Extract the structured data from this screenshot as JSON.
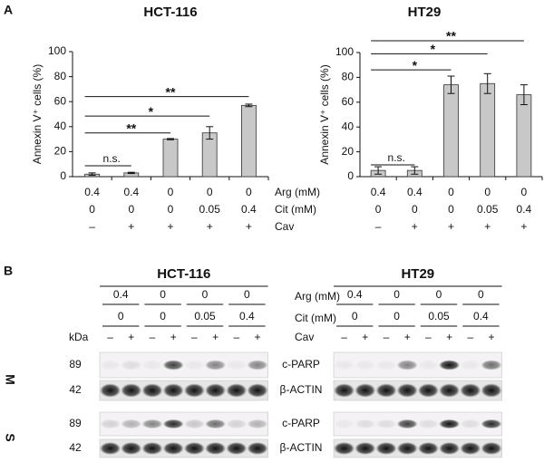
{
  "chart_data": [
    {
      "type": "bar",
      "title": "HCT-116",
      "ylabel": "Annexin V⁺ cells (%)",
      "values": [
        2,
        3,
        30,
        35,
        57
      ],
      "errors": [
        1,
        0.5,
        0.5,
        5,
        1
      ],
      "color": "#c8c8c8",
      "ylim": [
        0,
        100
      ],
      "yticks": [
        0,
        20,
        40,
        60,
        80,
        100
      ],
      "conditions": [
        [
          "0.4",
          "0.4",
          "0",
          "0",
          "0"
        ],
        [
          "0",
          "0",
          "0",
          "0.05",
          "0.4"
        ],
        [
          "–",
          "+",
          "+",
          "+",
          "+"
        ]
      ],
      "annotations": [
        {
          "from": 0,
          "to": 1,
          "y": 8.7,
          "label": "n.s."
        },
        {
          "from": 0,
          "to": 2,
          "y": 35,
          "label": "**"
        },
        {
          "from": 0,
          "to": 3,
          "y": 48.5,
          "label": "*"
        },
        {
          "from": 0,
          "to": 4,
          "y": 64,
          "label": "**"
        }
      ]
    },
    {
      "type": "bar",
      "title": "HT29",
      "ylabel": "Annexin V⁺ cells (%)",
      "values": [
        5,
        5,
        74,
        75,
        66
      ],
      "errors": [
        3,
        3,
        7,
        8,
        8
      ],
      "color": "#c8c8c8",
      "ylim": [
        0,
        100
      ],
      "yticks": [
        0,
        20,
        40,
        60,
        80,
        100
      ],
      "conditions": [
        [
          "0.4",
          "0.4",
          "0",
          "0",
          "0"
        ],
        [
          "0",
          "0",
          "0",
          "0.05",
          "0.4"
        ],
        [
          "–",
          "+",
          "+",
          "+",
          "+"
        ]
      ],
      "annotations": [
        {
          "from": 0,
          "to": 1,
          "y": 9.5,
          "label": "n.s."
        },
        {
          "from": 0,
          "to": 2,
          "y": 86,
          "label": "*"
        },
        {
          "from": 0,
          "to": 3,
          "y": 99,
          "label": "*"
        },
        {
          "from": 0,
          "to": 4,
          "y": 109.5,
          "label": "**"
        }
      ]
    }
  ],
  "panel_a": "A",
  "panel_b": "B",
  "condition_labels": [
    "Arg (mM)",
    "Cit (mM)",
    "Cav"
  ],
  "blots": [
    {
      "title": "HCT-116",
      "arg": [
        "0.4",
        "0",
        "0",
        "0"
      ],
      "cit": [
        "0",
        "0",
        "0.05",
        "0.4"
      ],
      "cav": [
        "–",
        "+",
        "–",
        "+",
        "–",
        "+",
        "–",
        "+"
      ]
    },
    {
      "title": "HT29",
      "arg": [
        "0.4",
        "0",
        "0",
        "0"
      ],
      "cit": [
        "0",
        "0",
        "0.05",
        "0.4"
      ],
      "cav": [
        "–",
        "+",
        "–",
        "+",
        "–",
        "+",
        "–",
        "+"
      ]
    }
  ],
  "kda_label": "kDa",
  "fractions": [
    {
      "name": "M",
      "bands": [
        {
          "kda": 89,
          "name": "c-PARP"
        },
        {
          "kda": 42,
          "name": "β-ACTIN"
        }
      ]
    },
    {
      "name": "S",
      "bands": [
        {
          "kda": 89,
          "name": "c-PARP"
        },
        {
          "kda": 42,
          "name": "β-ACTIN"
        }
      ]
    }
  ]
}
